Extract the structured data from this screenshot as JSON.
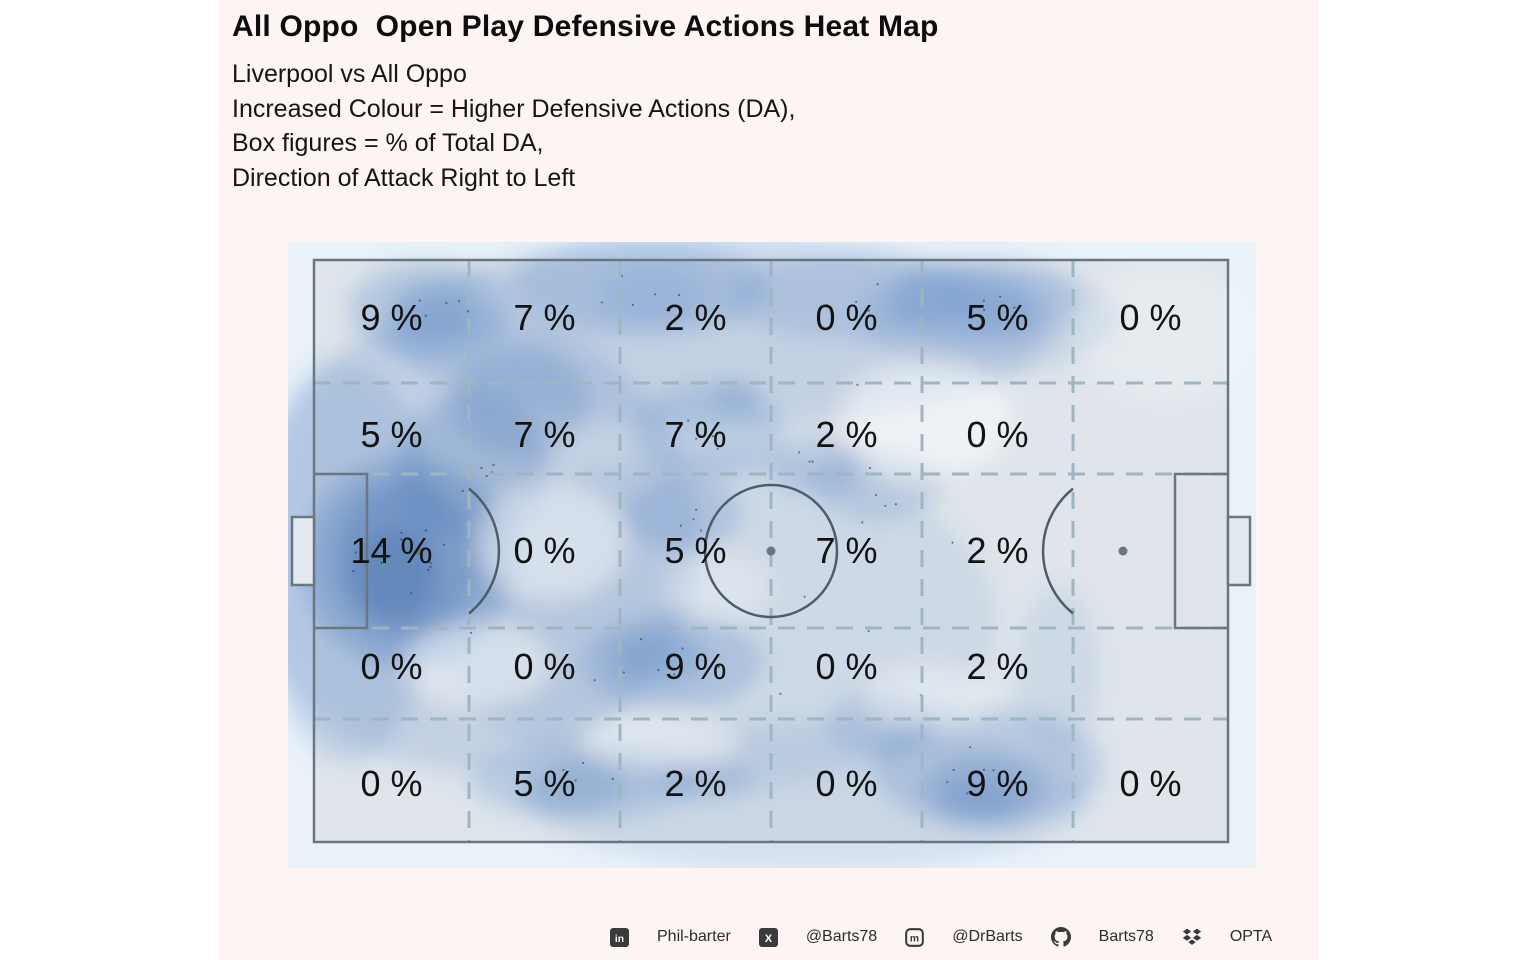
{
  "header": {
    "title": "All Oppo  Open Play Defensive Actions Heat Map",
    "subtitle_lines": [
      "Liverpool vs All Oppo",
      "Increased Colour = Higher Defensive Actions (DA),",
      "Box figures = % of Total DA,",
      "Direction of Attack Right to Left"
    ]
  },
  "chart_data": {
    "type": "heatmap",
    "title": "All Oppo Open Play Defensive Actions Heat Map",
    "subtitle": "Liverpool vs All Oppo",
    "legend_note": "Increased Colour = Higher Defensive Actions (DA); Box figures = % of Total DA",
    "direction_of_attack": "Right to Left",
    "grid": {
      "columns": 6,
      "rows": 5
    },
    "zone_percent_values": [
      [
        9,
        7,
        2,
        0,
        5,
        0
      ],
      [
        5,
        7,
        7,
        2,
        0,
        null
      ],
      [
        14,
        0,
        5,
        7,
        2,
        null
      ],
      [
        0,
        0,
        9,
        0,
        2,
        null
      ],
      [
        0,
        5,
        2,
        0,
        9,
        0
      ]
    ],
    "zone_percent_labels": [
      [
        "9 %",
        "7 %",
        "2 %",
        "0 %",
        "5 %",
        "0 %"
      ],
      [
        "5 %",
        "7 %",
        "7 %",
        "2 %",
        "0 %",
        ""
      ],
      [
        "14 %",
        "0 %",
        "5 %",
        "7 %",
        "2 %",
        ""
      ],
      [
        "0 %",
        "0 %",
        "9 %",
        "0 %",
        "2 %",
        ""
      ],
      [
        "0 %",
        "5 %",
        "2 %",
        "0 %",
        "9 %",
        "0 %"
      ]
    ],
    "max_zone": {
      "row": 3,
      "col": 1,
      "value_percent": 14
    },
    "colors": {
      "heat_low": "#dfe5eb",
      "heat_mid": "#aec6e6",
      "heat_high": "#8098bf",
      "plot_background": "#e9f1f9",
      "figure_background": "#fdf4f4",
      "pitch_lines": "#6b7680",
      "grid_dashes": "#9fb5c2"
    }
  },
  "footer": {
    "links": [
      {
        "platform": "linkedin",
        "icon": "linkedin-icon",
        "label": "Phil-barter"
      },
      {
        "platform": "x-twitter",
        "icon": "x-icon",
        "label": "@Barts78"
      },
      {
        "platform": "mastodon",
        "icon": "mastodon-icon",
        "label": "@DrBarts"
      },
      {
        "platform": "github",
        "icon": "github-icon",
        "label": "Barts78"
      },
      {
        "platform": "dropbox",
        "icon": "dropbox-icon",
        "label": "OPTA"
      }
    ]
  }
}
